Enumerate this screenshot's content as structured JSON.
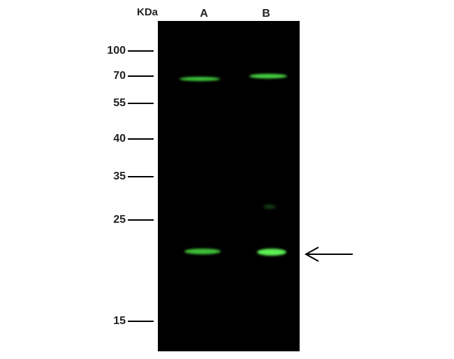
{
  "header": {
    "unit_label": "KDa"
  },
  "lanes": [
    "A",
    "B"
  ],
  "markers": [
    "100",
    "70",
    "55",
    "40",
    "35",
    "25",
    "15"
  ]
}
